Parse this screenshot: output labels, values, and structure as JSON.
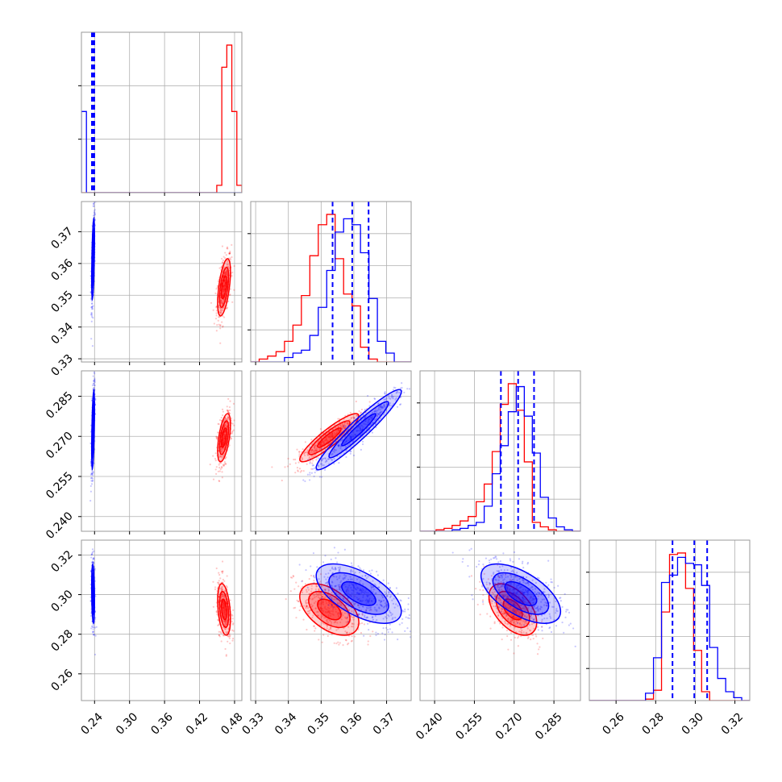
{
  "chart_data": {
    "type": "corner",
    "grid": true,
    "colors": {
      "red_series": "#ff0000",
      "blue_series": "#0000ff",
      "frame": "#999999"
    },
    "axes": {
      "x": [
        {
          "range": [
            0.2175,
            0.4925
          ],
          "ticks": [
            "0.24",
            "0.30",
            "0.36",
            "0.42",
            "0.48"
          ]
        },
        {
          "range": [
            0.3285,
            0.3775
          ],
          "ticks": [
            "0.33",
            "0.34",
            "0.35",
            "0.36",
            "0.37"
          ]
        },
        {
          "range": [
            0.2345,
            0.295
          ],
          "ticks": [
            "0.240",
            "0.255",
            "0.270",
            "0.285"
          ]
        },
        {
          "range": [
            0.2465,
            0.3275
          ],
          "ticks": [
            "0.26",
            "0.28",
            "0.30",
            "0.32"
          ]
        }
      ],
      "y": [
        null,
        {
          "range": [
            0.329,
            0.3795
          ],
          "ticks": [
            "0.33",
            "0.34",
            "0.35",
            "0.36",
            "0.37"
          ]
        },
        {
          "range": [
            0.2345,
            0.2945
          ],
          "ticks": [
            "0.240",
            "0.255",
            "0.270",
            "0.285"
          ]
        },
        {
          "range": [
            0.2465,
            0.3275
          ],
          "ticks": [
            "0.26",
            "0.28",
            "0.30",
            "0.32"
          ]
        }
      ]
    },
    "series": [
      {
        "color": "red",
        "means": [
          0.462,
          0.3525,
          0.2695,
          0.2925
        ],
        "sds": [
          0.0055,
          0.0045,
          0.0045,
          0.0065
        ],
        "corr": [
          [
            1,
            0.55,
            0.55,
            -0.35
          ],
          [
            0.55,
            1,
            0.9,
            -0.5
          ],
          [
            0.55,
            0.9,
            1,
            -0.5
          ],
          [
            -0.35,
            -0.5,
            -0.5,
            1
          ]
        ],
        "hist_counts": [
          [
            0,
            0,
            0,
            0,
            0,
            0,
            0,
            0,
            0,
            0,
            0,
            0,
            0,
            0,
            0,
            0,
            0,
            0,
            0,
            0,
            0,
            0,
            0,
            0,
            0,
            0,
            0,
            0.05,
            0.85,
            1.0,
            0.55,
            0.05
          ],
          [
            0,
            0.02,
            0.04,
            0.07,
            0.14,
            0.25,
            0.45,
            0.72,
            0.93,
            1.0,
            0.7,
            0.46,
            0.38,
            0.1,
            0.02,
            0,
            0,
            0,
            0
          ],
          [
            0,
            0,
            0.01,
            0.02,
            0.04,
            0.07,
            0.1,
            0.2,
            0.32,
            0.54,
            0.86,
            1.0,
            0.82,
            0.47,
            0.06,
            0.03,
            0.01,
            0,
            0,
            0
          ],
          [
            0,
            0,
            0,
            0,
            0,
            0,
            0,
            0.01,
            0.07,
            0.6,
            0.99,
            1.0,
            0.76,
            0.34,
            0.06,
            0,
            0,
            0,
            0,
            0
          ]
        ]
      },
      {
        "color": "blue",
        "means": [
          0.2375,
          0.3615,
          0.2725,
          0.3005
        ],
        "sds": [
          0.0012,
          0.0065,
          0.0075,
          0.0075
        ],
        "corr": [
          [
            1,
            0.55,
            0.55,
            -0.25
          ],
          [
            0.55,
            1,
            0.95,
            -0.6
          ],
          [
            0.55,
            0.95,
            1,
            -0.6
          ],
          [
            -0.25,
            -0.6,
            -0.6,
            1
          ]
        ],
        "quantiles": [
          [
            0.2355,
            0.2375,
            0.2395
          ],
          [
            0.3535,
            0.3595,
            0.3645
          ],
          [
            0.265,
            0.2715,
            0.2775
          ],
          [
            0.2885,
            0.2995,
            0.306
          ]
        ],
        "hist_counts": [
          [
            0.55,
            0,
            0,
            0,
            0,
            0,
            0,
            0,
            0,
            0,
            0,
            0,
            0,
            0,
            0,
            0,
            0,
            0,
            0,
            0,
            0,
            0,
            0,
            0,
            0,
            0,
            0,
            0,
            0,
            0,
            0,
            0
          ],
          [
            0,
            0,
            0,
            0,
            0.03,
            0.06,
            0.08,
            0.18,
            0.37,
            0.62,
            0.88,
            0.97,
            0.93,
            0.74,
            0.43,
            0.14,
            0.06,
            0,
            0
          ],
          [
            0,
            0,
            0,
            0,
            0.01,
            0.02,
            0.04,
            0.06,
            0.17,
            0.39,
            0.58,
            0.81,
            0.98,
            0.78,
            0.53,
            0.23,
            0.09,
            0.03,
            0.01,
            0
          ],
          [
            0,
            0,
            0,
            0,
            0,
            0,
            0,
            0.05,
            0.29,
            0.8,
            0.85,
            0.97,
            0.93,
            0.92,
            0.78,
            0.36,
            0.15,
            0.06,
            0.02,
            0
          ]
        ]
      }
    ]
  }
}
